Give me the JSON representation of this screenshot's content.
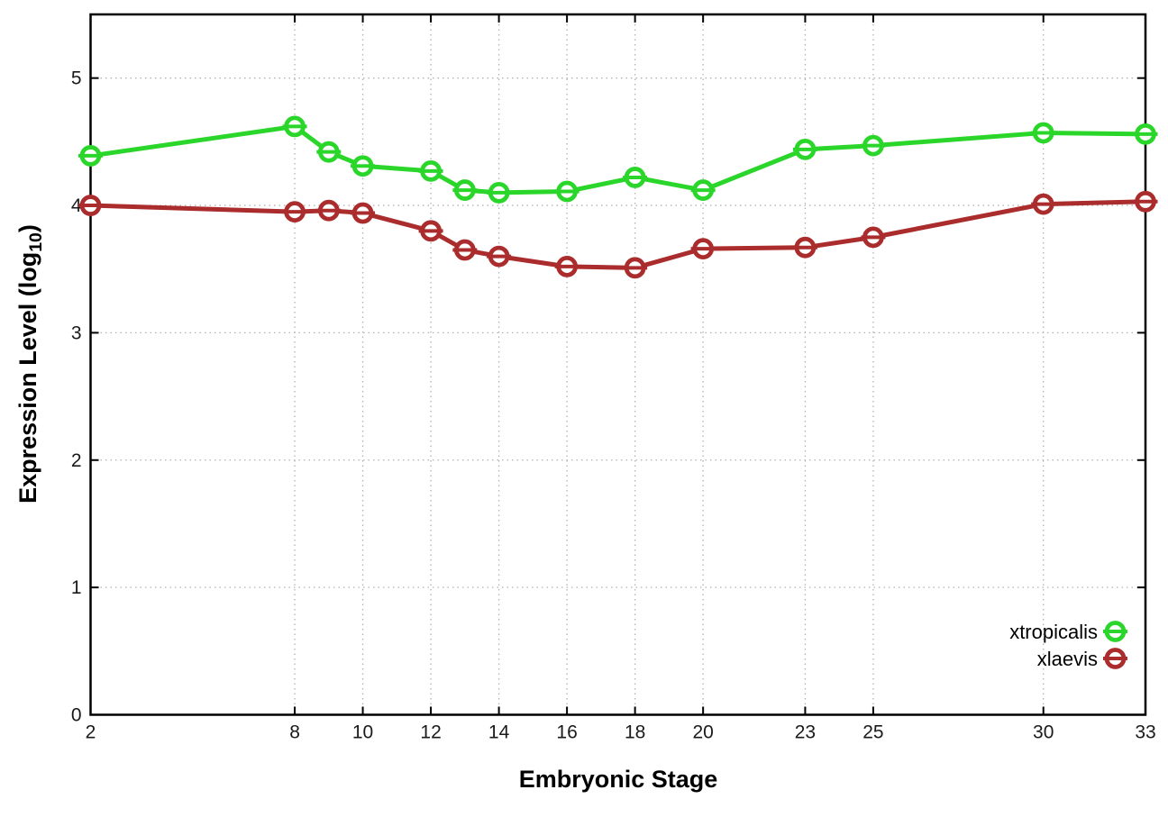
{
  "chart_data": {
    "type": "line",
    "title": "",
    "xlabel": "Embryonic Stage",
    "ylabel_parts": {
      "prefix": "Expression Level (log",
      "subscript": "10",
      "suffix": ")"
    },
    "x": [
      2,
      8,
      9,
      10,
      12,
      13,
      14,
      16,
      18,
      20,
      23,
      25,
      30,
      33
    ],
    "series": [
      {
        "name": "xtropicalis",
        "color": "#2bd62b",
        "values": [
          4.39,
          4.62,
          4.42,
          4.31,
          4.27,
          4.12,
          4.1,
          4.11,
          4.22,
          4.12,
          4.44,
          4.47,
          4.57,
          4.56
        ]
      },
      {
        "name": "xlaevis",
        "color": "#ab2c2c",
        "values": [
          4.0,
          3.95,
          3.96,
          3.94,
          3.8,
          3.65,
          3.6,
          3.52,
          3.51,
          3.66,
          3.67,
          3.75,
          4.01,
          4.03
        ]
      }
    ],
    "xticks": [
      2,
      8,
      10,
      12,
      14,
      16,
      18,
      20,
      23,
      25,
      30,
      33
    ],
    "yticks": [
      0,
      1,
      2,
      3,
      4,
      5
    ],
    "xlim": [
      2,
      33
    ],
    "ylim": [
      0,
      5.5
    ],
    "grid": true,
    "grid_style": "dotted",
    "legend_position": "bottom-right",
    "marker": "open-circle-with-horizontal-bar",
    "colors": {
      "axis": "#000000",
      "grid": "#b3b3b3",
      "tick_text": "#1a1a1a",
      "marker_fill": "#ffffff"
    }
  }
}
